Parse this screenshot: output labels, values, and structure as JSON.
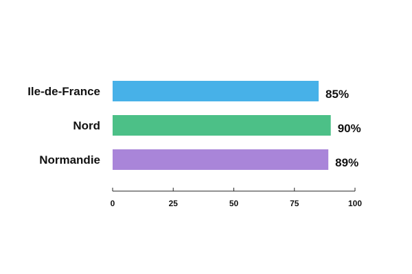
{
  "chart_data": {
    "type": "bar",
    "orientation": "horizontal",
    "categories": [
      "Ile-de-France",
      "Nord",
      "Normandie"
    ],
    "values": [
      85,
      90,
      89
    ],
    "value_labels": [
      "85%",
      "90%",
      "89%"
    ],
    "colors": [
      "#47b1e8",
      "#4cc087",
      "#a985d9"
    ],
    "xlim": [
      0,
      100
    ],
    "xticks": [
      "0",
      "25",
      "50",
      "75",
      "100"
    ],
    "title": "",
    "xlabel": "",
    "ylabel": "",
    "grid": false,
    "legend": "none"
  }
}
